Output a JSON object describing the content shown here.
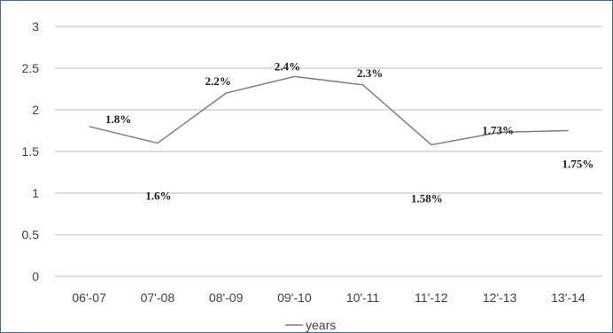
{
  "chart_data": {
    "type": "line",
    "categories": [
      "06'-07",
      "07'-08",
      "08'-09",
      "09'-10",
      "10'-11",
      "11'-12",
      "12'-13",
      "13'-14"
    ],
    "series": [
      {
        "name": "years",
        "values": [
          1.8,
          1.6,
          2.2,
          2.4,
          2.3,
          1.58,
          1.73,
          1.75
        ]
      }
    ],
    "data_labels": [
      "1.8%",
      "1.6%",
      "2.2%",
      "2.4%",
      "2.3%",
      "1.58%",
      "1.73%",
      "1.75%"
    ],
    "ylim": [
      0,
      3
    ],
    "yticks": [
      "0",
      "0.5",
      "1",
      "1.5",
      "2",
      "2.5",
      "3"
    ],
    "grid": true,
    "legend_position": "bottom",
    "colors": {
      "line": "#7f7f7f",
      "grid": "#bfbfbf",
      "border": "#3f6bb3"
    }
  }
}
